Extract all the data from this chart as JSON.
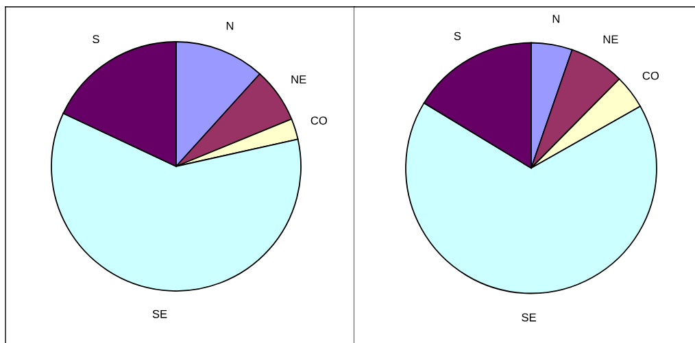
{
  "chart_data": [
    {
      "type": "pie",
      "categories": [
        "N",
        "NE",
        "CO",
        "SE",
        "S"
      ],
      "values": [
        11.7,
        7.1,
        2.7,
        60.5,
        18.0
      ],
      "colors": [
        "#9999ff",
        "#993366",
        "#ffffcc",
        "#ccffff",
        "#660066"
      ]
    },
    {
      "type": "pie",
      "categories": [
        "N",
        "NE",
        "CO",
        "SE",
        "S"
      ],
      "values": [
        5.3,
        7.1,
        4.4,
        66.9,
        16.3
      ],
      "colors": [
        "#9999ff",
        "#993366",
        "#ffffcc",
        "#ccffff",
        "#660066"
      ]
    }
  ]
}
